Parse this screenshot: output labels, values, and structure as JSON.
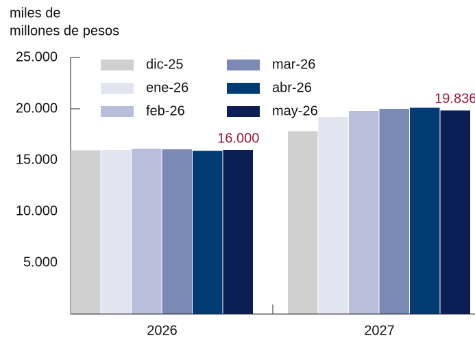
{
  "chart_data": {
    "type": "bar",
    "ylabel": [
      "miles de",
      "millones de pesos"
    ],
    "categories": [
      "2026",
      "2027"
    ],
    "series": [
      {
        "name": "dic-25",
        "color": "#d0d0d0",
        "values": [
          15950,
          17800
        ]
      },
      {
        "name": "ene-26",
        "color": "#e2e4f0",
        "values": [
          16000,
          19200
        ]
      },
      {
        "name": "feb-26",
        "color": "#b9bfda",
        "values": [
          16100,
          19800
        ]
      },
      {
        "name": "mar-26",
        "color": "#7b89b5",
        "values": [
          16050,
          20000
        ]
      },
      {
        "name": "abr-26",
        "color": "#003b73",
        "values": [
          15900,
          20100
        ]
      },
      {
        "name": "may-26",
        "color": "#0b1f56",
        "values": [
          16000,
          19836
        ],
        "value_labels": [
          "16.000",
          "19.836"
        ]
      }
    ],
    "ylim": [
      0,
      25000
    ],
    "yticks": [
      {
        "value": 5000,
        "label": "5.000"
      },
      {
        "value": 10000,
        "label": "10.000"
      },
      {
        "value": 15000,
        "label": "15.000"
      },
      {
        "value": 20000,
        "label": "20.000"
      },
      {
        "value": 25000,
        "label": "25.000"
      }
    ]
  }
}
